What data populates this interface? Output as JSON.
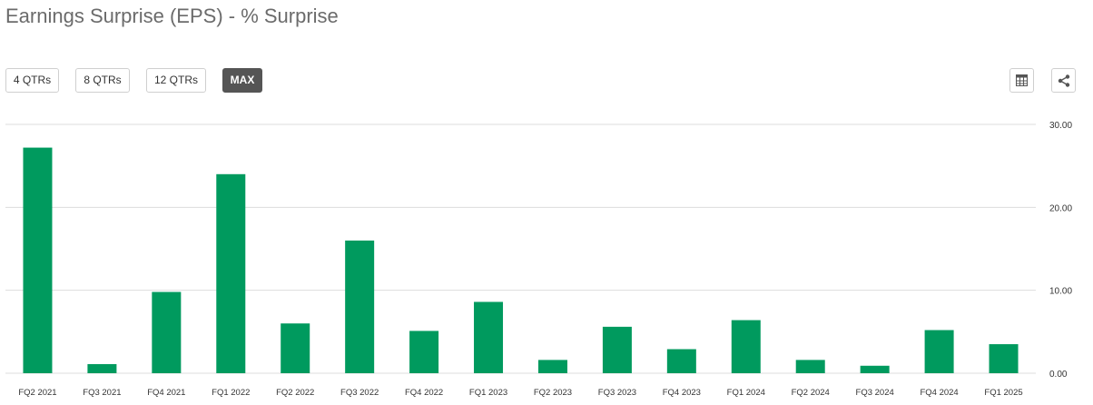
{
  "title": "Earnings Surprise (EPS) - % Surprise",
  "range_buttons": [
    {
      "label": "4 QTRs",
      "active": false
    },
    {
      "label": "8 QTRs",
      "active": false
    },
    {
      "label": "12 QTRs",
      "active": false
    },
    {
      "label": "MAX",
      "active": true
    }
  ],
  "icons": {
    "table": "table-icon",
    "share": "share-icon"
  },
  "colors": {
    "bar": "#009a5e",
    "grid": "#dddddd",
    "active_button": "#555555"
  },
  "chart_data": {
    "type": "bar",
    "title": "Earnings Surprise (EPS) - % Surprise",
    "categories": [
      "FQ2 2021",
      "FQ3 2021",
      "FQ4 2021",
      "FQ1 2022",
      "FQ2 2022",
      "FQ3 2022",
      "FQ4 2022",
      "FQ1 2023",
      "FQ2 2023",
      "FQ3 2023",
      "FQ4 2023",
      "FQ1 2024",
      "FQ2 2024",
      "FQ3 2024",
      "FQ4 2024",
      "FQ1 2025"
    ],
    "values": [
      27.2,
      1.1,
      9.8,
      24.0,
      6.0,
      16.0,
      5.1,
      8.6,
      1.6,
      5.6,
      2.9,
      6.4,
      1.6,
      0.9,
      5.2,
      3.5
    ],
    "yticks": [
      "0.00",
      "10.00",
      "20.00",
      "30.00"
    ],
    "ylim": [
      0,
      30
    ],
    "grid": true,
    "xlabel": "",
    "ylabel": ""
  }
}
